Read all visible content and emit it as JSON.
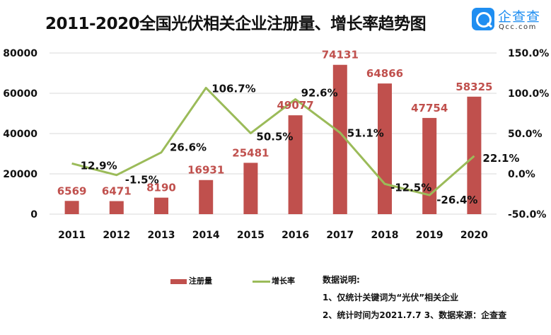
{
  "header": {
    "title": "2011-2020全国光伏相关企业注册量、增长率趋势图",
    "logo_cn": "企查查",
    "logo_en": "Qcc.com"
  },
  "colors": {
    "bar": "#c0504d",
    "line": "#9bbb59",
    "grid": "#d9d9d9"
  },
  "chart_data": {
    "type": "bar+line",
    "title": "2011-2020全国光伏相关企业注册量、增长率趋势图",
    "categories": [
      "2011",
      "2012",
      "2013",
      "2014",
      "2015",
      "2016",
      "2017",
      "2018",
      "2019",
      "2020"
    ],
    "series": [
      {
        "name": "注册量",
        "type": "bar",
        "axis": "left",
        "values": [
          6569,
          6471,
          8190,
          16931,
          25481,
          49077,
          74131,
          64866,
          47754,
          58325
        ],
        "labels": [
          "6569",
          "6471",
          "8190",
          "16931",
          "25481",
          "49077",
          "74131",
          "64866",
          "47754",
          "58325"
        ]
      },
      {
        "name": "增长率",
        "type": "line",
        "axis": "right",
        "values": [
          12.9,
          -1.5,
          26.6,
          106.7,
          50.5,
          92.6,
          51.1,
          -12.5,
          -26.4,
          22.1
        ],
        "labels": [
          "12.9%",
          "-1.5%",
          "26.6%",
          "106.7%",
          "50.5%",
          "92.6%",
          "51.1%",
          "-12.5%",
          "-26.4%",
          "22.1%"
        ]
      }
    ],
    "y_left": {
      "range": [
        0,
        80000
      ],
      "ticks": [
        "0",
        "20000",
        "40000",
        "60000",
        "80000"
      ]
    },
    "y_right": {
      "range": [
        -50,
        150
      ],
      "ticks": [
        "-50.0%",
        "0.0%",
        "50.0%",
        "100.0%",
        "150.0%"
      ]
    },
    "grid": true,
    "legend": {
      "position": "bottom-left",
      "entries": [
        "注册量",
        "增长率"
      ]
    }
  },
  "notes": {
    "heading": "数据说明:",
    "line1": "1、仅统计关键词为“光伏”相关企业",
    "line2": "2、统计时间为2021.7.7  3、数据来源：企查查"
  }
}
